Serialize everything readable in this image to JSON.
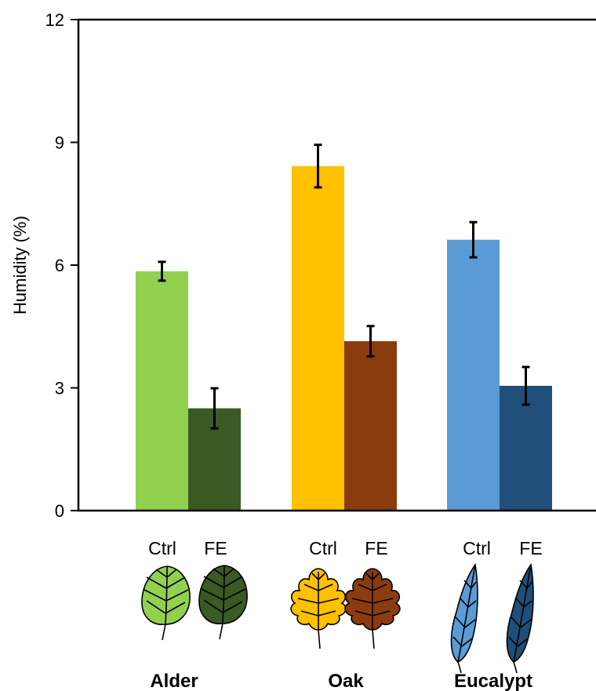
{
  "chart_data": {
    "type": "bar",
    "title": "",
    "xlabel": "",
    "ylabel": "Humidity (%)",
    "ylim": [
      0,
      12
    ],
    "yticks": [
      0,
      3,
      6,
      9,
      12
    ],
    "grid": false,
    "legend": "none",
    "categories": [
      "Alder",
      "Oak",
      "Eucalypt"
    ],
    "treatments": [
      "Ctrl",
      "FE"
    ],
    "series": [
      {
        "values": [
          5.85,
          8.42,
          6.62
        ],
        "errors": [
          0.23,
          0.52,
          0.43
        ],
        "colors": [
          "#92d050",
          "#ffc000",
          "#5b9bd5"
        ]
      },
      {
        "values": [
          2.5,
          4.14,
          3.05
        ],
        "errors": [
          0.49,
          0.37,
          0.46
        ],
        "colors": [
          "#3a5a24",
          "#8b3c0e",
          "#1f4e79"
        ]
      }
    ]
  },
  "icons": [
    "alder-leaf-icon",
    "oak-leaf-icon",
    "eucalypt-leaf-icon"
  ]
}
